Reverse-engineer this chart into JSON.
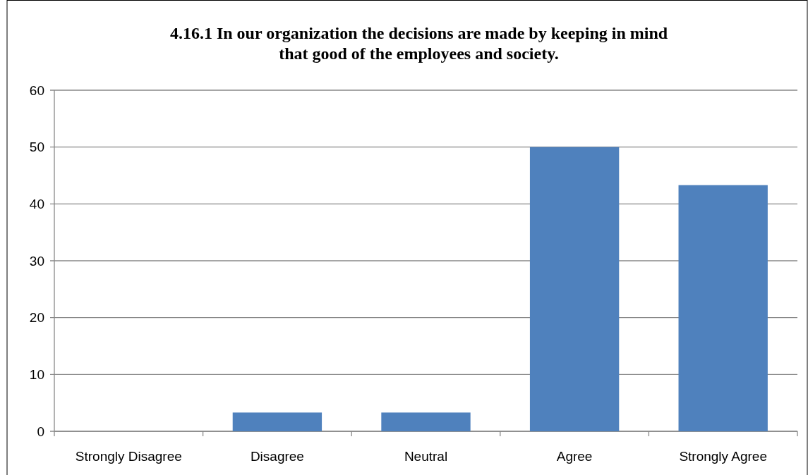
{
  "chart_data": {
    "type": "bar",
    "title": "4.16.1 In our organization the decisions are made by keeping in mind\nthat good of the employees and society.",
    "categories": [
      "Strongly Disagree",
      "Disagree",
      "Neutral",
      "Agree",
      "Strongly Agree"
    ],
    "values": [
      0,
      3.3,
      3.3,
      50,
      43.3
    ],
    "color": "#4f81bd",
    "ylim": [
      0,
      60
    ],
    "yticks": [
      0,
      10,
      20,
      30,
      40,
      50,
      60
    ],
    "grid": "y"
  }
}
